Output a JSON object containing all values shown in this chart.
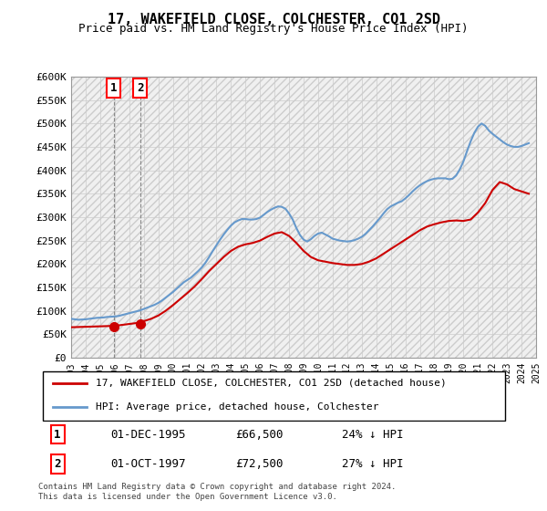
{
  "title": "17, WAKEFIELD CLOSE, COLCHESTER, CO1 2SD",
  "subtitle": "Price paid vs. HM Land Registry's House Price Index (HPI)",
  "legend_line1": "17, WAKEFIELD CLOSE, COLCHESTER, CO1 2SD (detached house)",
  "legend_line2": "HPI: Average price, detached house, Colchester",
  "footer": "Contains HM Land Registry data © Crown copyright and database right 2024.\nThis data is licensed under the Open Government Licence v3.0.",
  "sale1_label": "1",
  "sale1_date": "01-DEC-1995",
  "sale1_price": "£66,500",
  "sale1_hpi": "24% ↓ HPI",
  "sale2_label": "2",
  "sale2_date": "01-OCT-1997",
  "sale2_price": "£72,500",
  "sale2_hpi": "27% ↓ HPI",
  "sale1_x": 1995.92,
  "sale1_y": 66500,
  "sale2_x": 1997.75,
  "sale2_y": 72500,
  "ylim": [
    0,
    600000
  ],
  "xlim": [
    1993,
    2025
  ],
  "yticks": [
    0,
    50000,
    100000,
    150000,
    200000,
    250000,
    300000,
    350000,
    400000,
    450000,
    500000,
    550000,
    600000
  ],
  "ytick_labels": [
    "£0",
    "£50K",
    "£100K",
    "£150K",
    "£200K",
    "£250K",
    "£300K",
    "£350K",
    "£400K",
    "£450K",
    "£500K",
    "£550K",
    "£600K"
  ],
  "red_color": "#cc0000",
  "blue_color": "#6699cc",
  "bg_color": "#ffffff",
  "hpi_years": [
    1993.0,
    1993.25,
    1993.5,
    1993.75,
    1994.0,
    1994.25,
    1994.5,
    1994.75,
    1995.0,
    1995.25,
    1995.5,
    1995.75,
    1996.0,
    1996.25,
    1996.5,
    1996.75,
    1997.0,
    1997.25,
    1997.5,
    1997.75,
    1998.0,
    1998.25,
    1998.5,
    1998.75,
    1999.0,
    1999.25,
    1999.5,
    1999.75,
    2000.0,
    2000.25,
    2000.5,
    2000.75,
    2001.0,
    2001.25,
    2001.5,
    2001.75,
    2002.0,
    2002.25,
    2002.5,
    2002.75,
    2003.0,
    2003.25,
    2003.5,
    2003.75,
    2004.0,
    2004.25,
    2004.5,
    2004.75,
    2005.0,
    2005.25,
    2005.5,
    2005.75,
    2006.0,
    2006.25,
    2006.5,
    2006.75,
    2007.0,
    2007.25,
    2007.5,
    2007.75,
    2008.0,
    2008.25,
    2008.5,
    2008.75,
    2009.0,
    2009.25,
    2009.5,
    2009.75,
    2010.0,
    2010.25,
    2010.5,
    2010.75,
    2011.0,
    2011.25,
    2011.5,
    2011.75,
    2012.0,
    2012.25,
    2012.5,
    2012.75,
    2013.0,
    2013.25,
    2013.5,
    2013.75,
    2014.0,
    2014.25,
    2014.5,
    2014.75,
    2015.0,
    2015.25,
    2015.5,
    2015.75,
    2016.0,
    2016.25,
    2016.5,
    2016.75,
    2017.0,
    2017.25,
    2017.5,
    2017.75,
    2018.0,
    2018.25,
    2018.5,
    2018.75,
    2019.0,
    2019.25,
    2019.5,
    2019.75,
    2020.0,
    2020.25,
    2020.5,
    2020.75,
    2021.0,
    2021.25,
    2021.5,
    2021.75,
    2022.0,
    2022.25,
    2022.5,
    2022.75,
    2023.0,
    2023.25,
    2023.5,
    2023.75,
    2024.0,
    2024.25,
    2024.5
  ],
  "hpi_values": [
    83000,
    82000,
    81000,
    81500,
    82000,
    83000,
    84000,
    85000,
    85500,
    86000,
    87000,
    87500,
    88000,
    89000,
    91000,
    93000,
    95000,
    97000,
    99000,
    101000,
    104000,
    107000,
    110000,
    113000,
    117000,
    122000,
    128000,
    134000,
    140000,
    147000,
    154000,
    161000,
    166000,
    171000,
    178000,
    185000,
    193000,
    203000,
    215000,
    228000,
    240000,
    252000,
    263000,
    273000,
    282000,
    289000,
    293000,
    296000,
    296000,
    295000,
    295000,
    296000,
    299000,
    305000,
    311000,
    316000,
    320000,
    323000,
    322000,
    318000,
    308000,
    295000,
    277000,
    262000,
    252000,
    248000,
    253000,
    260000,
    265000,
    267000,
    263000,
    259000,
    254000,
    252000,
    250000,
    249000,
    248000,
    249000,
    251000,
    254000,
    258000,
    264000,
    272000,
    280000,
    289000,
    298000,
    308000,
    317000,
    323000,
    327000,
    331000,
    334000,
    340000,
    347000,
    355000,
    362000,
    368000,
    373000,
    377000,
    380000,
    382000,
    383000,
    383000,
    383000,
    381000,
    382000,
    389000,
    402000,
    419000,
    441000,
    462000,
    480000,
    493000,
    500000,
    495000,
    485000,
    478000,
    472000,
    466000,
    460000,
    455000,
    452000,
    450000,
    450000,
    452000,
    455000,
    458000
  ],
  "price_years": [
    1993.0,
    1993.5,
    1994.0,
    1994.5,
    1995.0,
    1995.5,
    1996.0,
    1996.5,
    1997.0,
    1997.5,
    1998.0,
    1998.5,
    1999.0,
    1999.5,
    2000.0,
    2000.5,
    2001.0,
    2001.5,
    2002.0,
    2002.5,
    2003.0,
    2003.5,
    2004.0,
    2004.5,
    2005.0,
    2005.5,
    2006.0,
    2006.5,
    2007.0,
    2007.5,
    2008.0,
    2008.5,
    2009.0,
    2009.5,
    2010.0,
    2010.5,
    2011.0,
    2011.5,
    2012.0,
    2012.5,
    2013.0,
    2013.5,
    2014.0,
    2014.5,
    2015.0,
    2015.5,
    2016.0,
    2016.5,
    2017.0,
    2017.5,
    2018.0,
    2018.5,
    2019.0,
    2019.5,
    2020.0,
    2020.5,
    2021.0,
    2021.5,
    2022.0,
    2022.5,
    2023.0,
    2023.5,
    2024.0,
    2024.5
  ],
  "price_values": [
    65000,
    65500,
    66000,
    66500,
    67000,
    67500,
    68000,
    70000,
    72000,
    74000,
    78000,
    83000,
    90000,
    100000,
    112000,
    125000,
    138000,
    152000,
    168000,
    185000,
    200000,
    215000,
    228000,
    237000,
    242000,
    245000,
    250000,
    258000,
    265000,
    268000,
    260000,
    245000,
    228000,
    215000,
    208000,
    205000,
    202000,
    200000,
    198000,
    198000,
    200000,
    205000,
    212000,
    222000,
    232000,
    242000,
    252000,
    262000,
    272000,
    280000,
    285000,
    289000,
    292000,
    293000,
    292000,
    295000,
    310000,
    330000,
    358000,
    375000,
    370000,
    360000,
    355000,
    350000
  ]
}
